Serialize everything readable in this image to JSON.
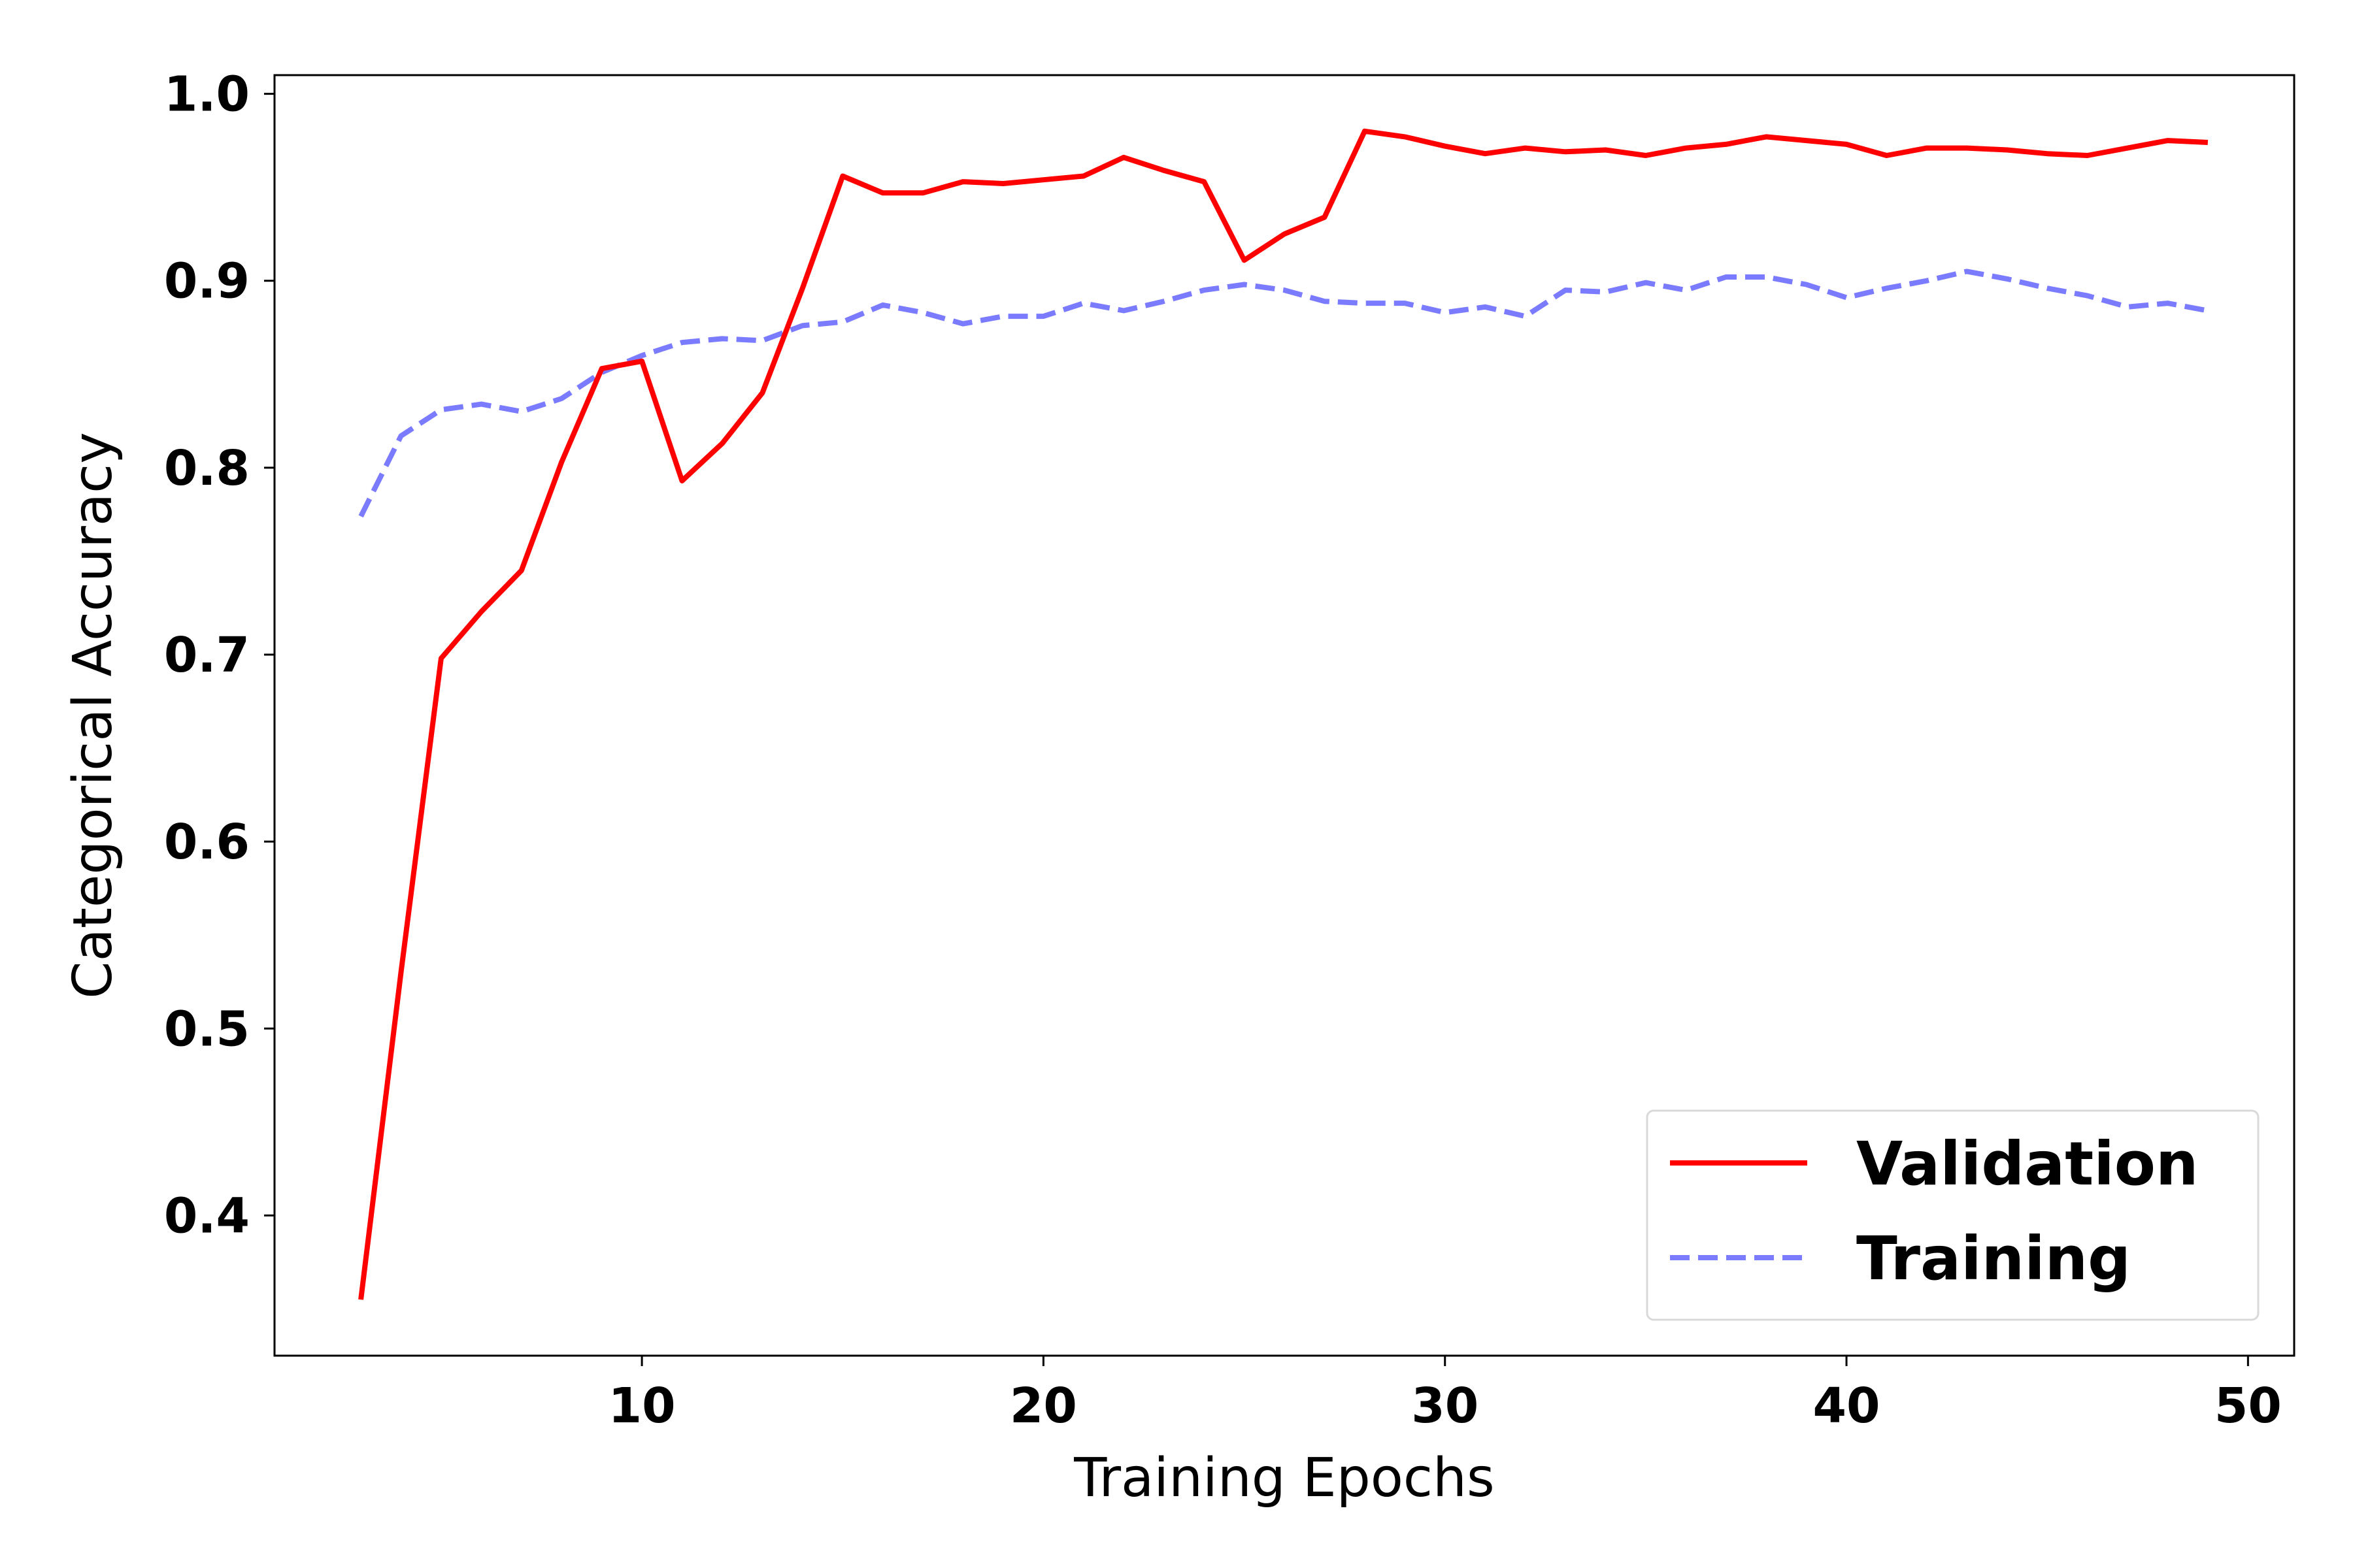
{
  "chart_data": {
    "type": "line",
    "xlabel": "Training Epochs",
    "ylabel": "Categorical Accuracy",
    "xlim": [
      0.85,
      51.15
    ],
    "ylim": [
      0.325,
      1.01
    ],
    "x_ticks": [
      10,
      20,
      30,
      40,
      50
    ],
    "y_ticks": [
      0.4,
      0.5,
      0.6,
      0.7,
      0.8,
      0.9,
      1.0
    ],
    "x_tick_labels": [
      "10",
      "20",
      "30",
      "40",
      "50"
    ],
    "y_tick_labels": [
      "0.4",
      "0.5",
      "0.6",
      "0.7",
      "0.8",
      "0.9",
      "1.0"
    ],
    "grid": false,
    "legend_position": "bottom-right",
    "x": [
      3,
      4,
      5,
      6,
      7,
      8,
      9,
      10,
      11,
      12,
      13,
      14,
      15,
      16,
      17,
      18,
      19,
      20,
      21,
      22,
      23,
      24,
      25,
      26,
      27,
      28,
      29,
      30,
      31,
      32,
      33,
      34,
      35,
      36,
      37,
      38,
      39,
      40,
      41,
      42,
      43,
      44,
      45,
      46,
      47,
      48,
      49
    ],
    "series": [
      {
        "name": "Validation",
        "color": "#ff0000",
        "style": "solid",
        "values": [
          0.355,
          0.53,
          0.698,
          0.723,
          0.745,
          0.803,
          0.853,
          0.857,
          0.793,
          0.813,
          0.84,
          0.896,
          0.956,
          0.947,
          0.947,
          0.953,
          0.952,
          0.954,
          0.956,
          0.966,
          0.959,
          0.953,
          0.911,
          0.925,
          0.934,
          0.98,
          0.977,
          0.972,
          0.968,
          0.971,
          0.969,
          0.97,
          0.967,
          0.971,
          0.973,
          0.977,
          0.975,
          0.973,
          0.967,
          0.971,
          0.971,
          0.97,
          0.968,
          0.967,
          0.971,
          0.975,
          0.974
        ]
      },
      {
        "name": "Training",
        "color": "#7b7bff",
        "style": "dashed",
        "values": [
          0.774,
          0.817,
          0.831,
          0.834,
          0.83,
          0.837,
          0.851,
          0.86,
          0.867,
          0.869,
          0.868,
          0.876,
          0.878,
          0.887,
          0.883,
          0.877,
          0.881,
          0.881,
          0.888,
          0.884,
          0.889,
          0.895,
          0.898,
          0.895,
          0.889,
          0.888,
          0.888,
          0.883,
          0.886,
          0.881,
          0.895,
          0.894,
          0.899,
          0.895,
          0.902,
          0.902,
          0.898,
          0.891,
          0.896,
          0.9,
          0.905,
          0.901,
          0.896,
          0.892,
          0.886,
          0.888,
          0.884
        ]
      }
    ]
  }
}
